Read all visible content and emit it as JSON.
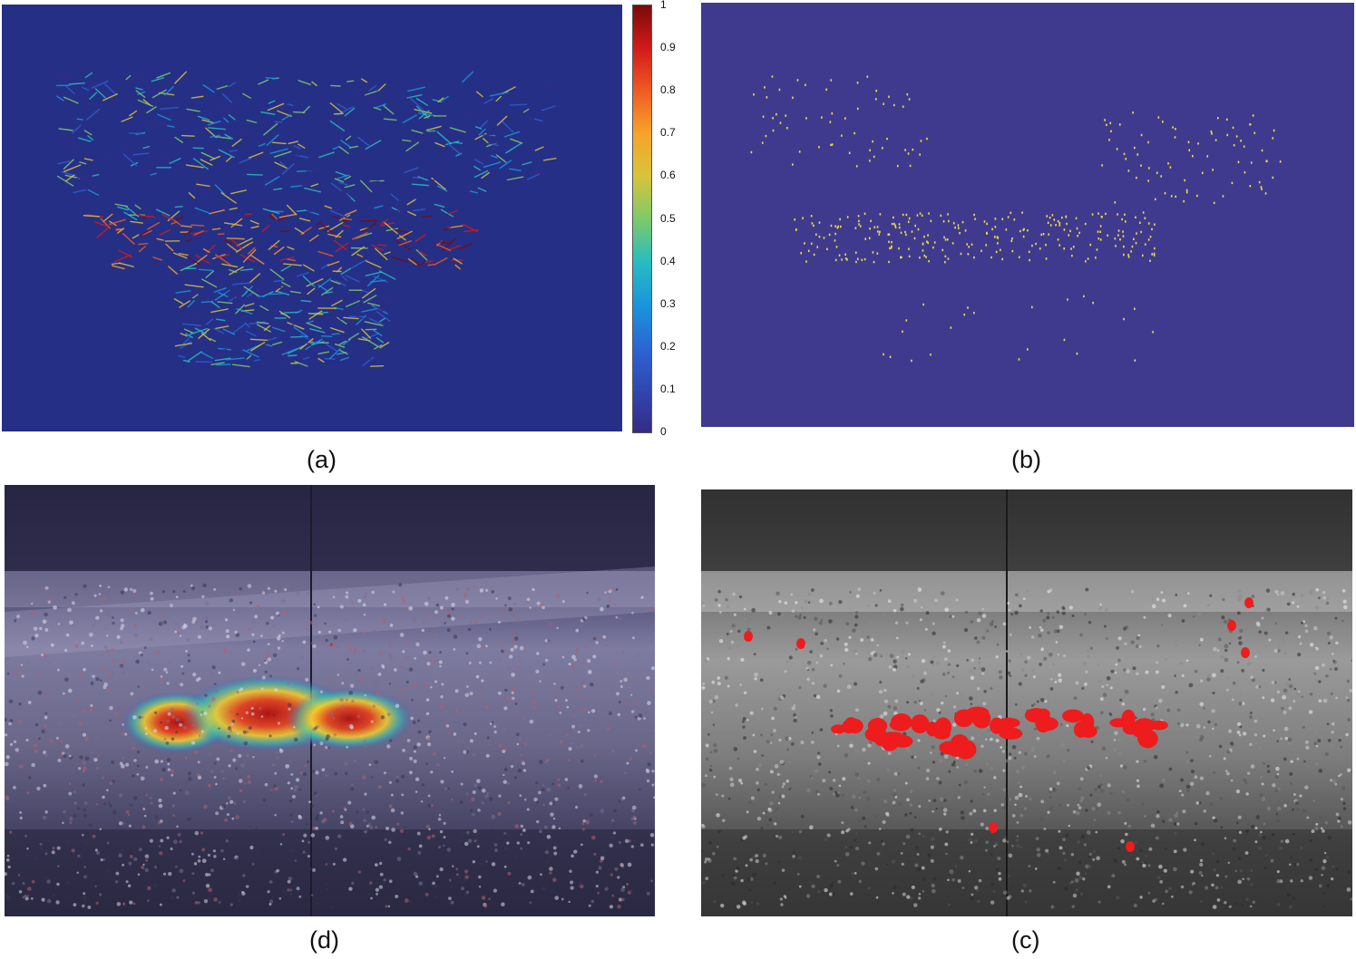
{
  "figure": {
    "captions": {
      "a": "(a)",
      "b": "(b)",
      "c": "(c)",
      "d": "(d)"
    },
    "colorbar": {
      "ticks": [
        "1",
        "0.9",
        "0.8",
        "0.7",
        "0.6",
        "0.5",
        "0.4",
        "0.3",
        "0.2",
        "0.1",
        "0"
      ],
      "colors": [
        "#352a87",
        "#2c5fd0",
        "#1996dd",
        "#28bdc0",
        "#7ec96a",
        "#d8c43a",
        "#f7a32b",
        "#f05a24",
        "#d11a1a",
        "#7a0a0a"
      ]
    },
    "panel_colors": {
      "a_background": "#262f86",
      "b_background": "#403a8f",
      "b_points": "#f2e23a",
      "c_blobs": "#ee1c1c"
    }
  }
}
